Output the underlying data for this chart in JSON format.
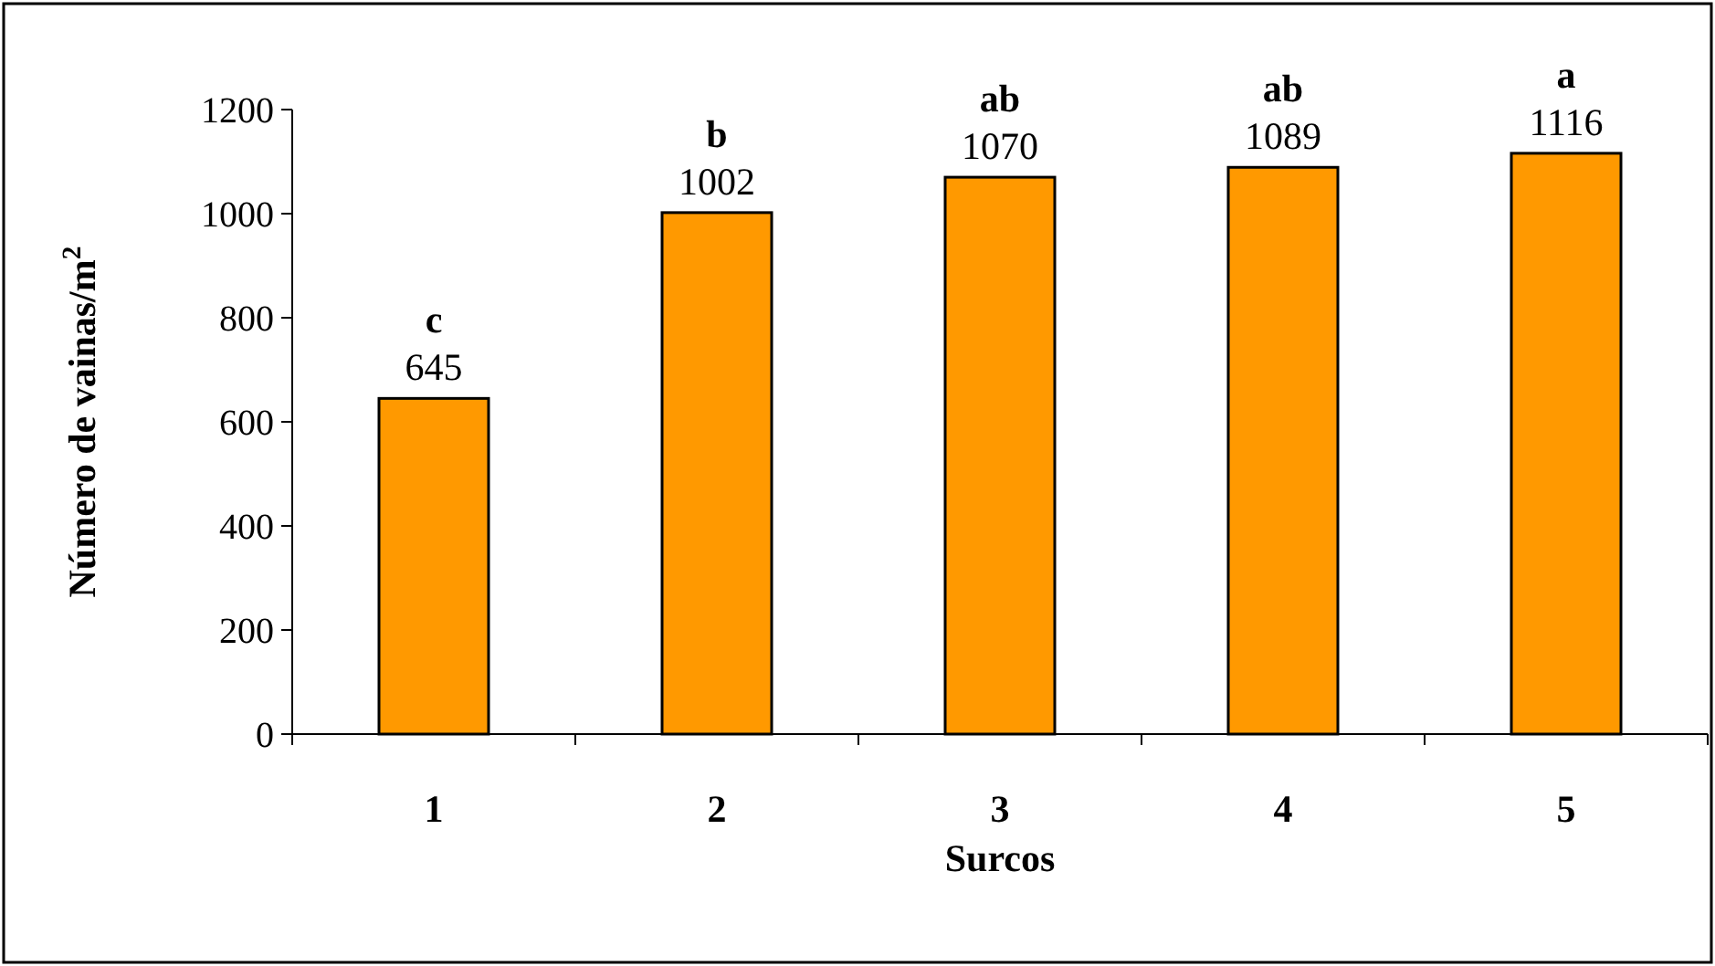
{
  "chart_data": {
    "type": "bar",
    "xlabel": "Surcos",
    "ylabel": "Número de vainas/m$^{2}$",
    "categories": [
      "1",
      "2",
      "3",
      "4",
      "5"
    ],
    "values": [
      645,
      1002,
      1070,
      1089,
      1116
    ],
    "color": "#ff9900",
    "ylim": [
      0,
      1200
    ],
    "yticks": [
      0,
      200,
      400,
      600,
      800,
      1000,
      1200
    ],
    "grid": false,
    "data_labels": true,
    "annotations": [
      {
        "text": "c",
        "x": "1",
        "y": 645
      },
      {
        "text": "b",
        "x": "2",
        "y": 1002
      },
      {
        "text": "ab",
        "x": "3",
        "y": 1070
      },
      {
        "text": "ab",
        "x": "4",
        "y": 1089
      },
      {
        "text": "a",
        "x": "5",
        "y": 1116
      }
    ]
  }
}
